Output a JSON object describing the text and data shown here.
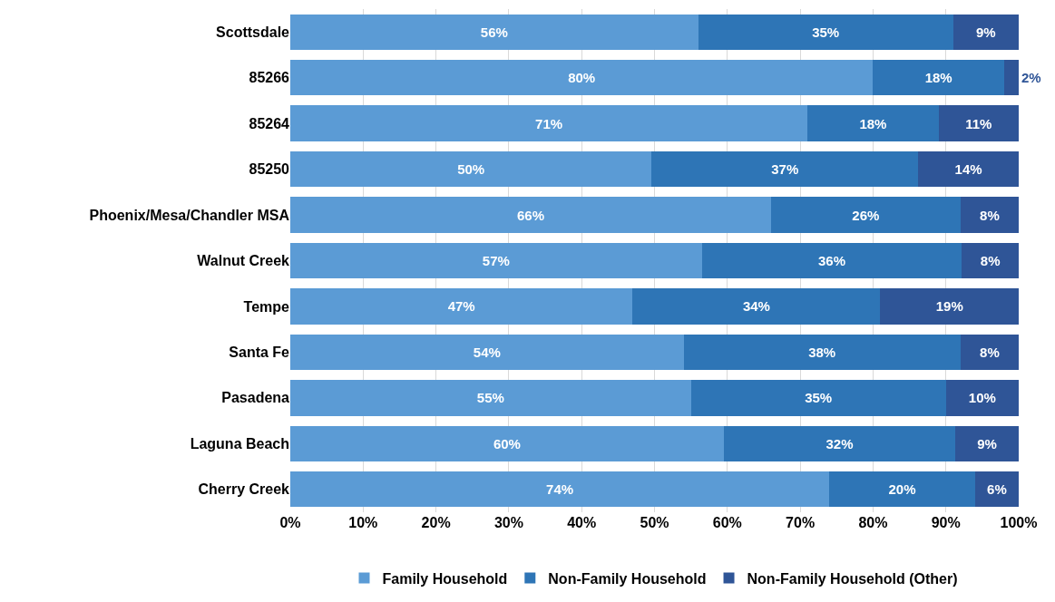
{
  "chart_data": {
    "type": "bar",
    "orientation": "horizontal",
    "stacked": true,
    "categories": [
      "Scottsdale",
      "85266",
      "85264",
      "85250",
      "Phoenix/Mesa/Chandler MSA",
      "Walnut Creek",
      "Tempe",
      "Santa Fe",
      "Pasadena",
      "Laguna Beach",
      "Cherry Creek"
    ],
    "series": [
      {
        "name": "Family Household",
        "color": "#5b9bd5",
        "values": [
          56,
          80,
          71,
          49.6,
          66,
          56.5,
          47,
          54,
          55,
          59.5,
          74
        ],
        "value_labels": [
          "56%",
          "80%",
          "71%",
          "50%",
          "66%",
          "57%",
          "47%",
          "54%",
          "55%",
          "60%",
          "74%"
        ]
      },
      {
        "name": "Non-Family Household",
        "color": "#2e75b6",
        "values": [
          35,
          18,
          18,
          36.6,
          26,
          35.7,
          34,
          38,
          35,
          31.8,
          20
        ],
        "value_labels": [
          "35%",
          "18%",
          "18%",
          "37%",
          "26%",
          "36%",
          "34%",
          "38%",
          "35%",
          "32%",
          "20%"
        ]
      },
      {
        "name": "Non-Family Household (Other)",
        "color": "#2f5597",
        "values": [
          9,
          2,
          11,
          13.8,
          8,
          7.8,
          19,
          8,
          10,
          8.7,
          6
        ],
        "value_labels": [
          "9%",
          "2%",
          "11%",
          "14%",
          "8%",
          "8%",
          "19%",
          "8%",
          "10%",
          "9%",
          "6%"
        ]
      }
    ],
    "xlim": [
      0,
      100
    ],
    "xticks": [
      {
        "value": 0,
        "label": "0%"
      },
      {
        "value": 10,
        "label": "10%"
      },
      {
        "value": 20,
        "label": "20%"
      },
      {
        "value": 30,
        "label": "30%"
      },
      {
        "value": 40,
        "label": "40%"
      },
      {
        "value": 50,
        "label": "50%"
      },
      {
        "value": 60,
        "label": "60%"
      },
      {
        "value": 70,
        "label": "70%"
      },
      {
        "value": 80,
        "label": "80%"
      },
      {
        "value": 90,
        "label": "90%"
      },
      {
        "value": 100,
        "label": "100%"
      }
    ],
    "grid": "x",
    "legend": "bottom"
  }
}
